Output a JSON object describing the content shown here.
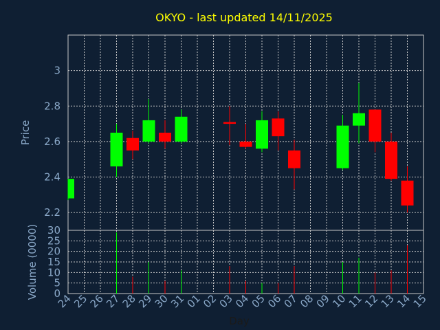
{
  "chart_data": {
    "type": "candlestick",
    "title": "OKYO - last updated 14/11/2025",
    "xlabel": "Day",
    "ylabel_price": "Price",
    "ylabel_volume": "Volume (0000)",
    "x_ticks": [
      "24",
      "25",
      "26",
      "27",
      "28",
      "29",
      "30",
      "31",
      "01",
      "02",
      "03",
      "04",
      "05",
      "06",
      "07",
      "08",
      "09",
      "10",
      "11",
      "12",
      "13",
      "14",
      "15"
    ],
    "price_ylim": [
      2.1,
      3.2
    ],
    "price_yticks": [
      2.2,
      2.4,
      2.6,
      2.8,
      3
    ],
    "volume_ylim": [
      0,
      30
    ],
    "volume_yticks": [
      0,
      5,
      10,
      15,
      20,
      25,
      30
    ],
    "grid": true,
    "colors": {
      "background": "#0f1f33",
      "title": "#ffff00",
      "axis_text": "#8aa8c8",
      "up": "#00ff00",
      "down": "#ff0000"
    },
    "candles": [
      {
        "day": "24",
        "open": 2.28,
        "high": 2.39,
        "low": 2.27,
        "close": 2.39,
        "volume": 0
      },
      {
        "day": "27",
        "open": 2.46,
        "high": 2.7,
        "low": 2.4,
        "close": 2.65,
        "volume": 29
      },
      {
        "day": "28",
        "open": 2.62,
        "high": 2.66,
        "low": 2.5,
        "close": 2.55,
        "volume": 8
      },
      {
        "day": "29",
        "open": 2.6,
        "high": 2.84,
        "low": 2.59,
        "close": 2.72,
        "volume": 15
      },
      {
        "day": "30",
        "open": 2.65,
        "high": 2.72,
        "low": 2.56,
        "close": 2.6,
        "volume": 6
      },
      {
        "day": "31",
        "open": 2.6,
        "high": 2.78,
        "low": 2.59,
        "close": 2.74,
        "volume": 11
      },
      {
        "day": "03",
        "open": 2.71,
        "high": 2.8,
        "low": 2.58,
        "close": 2.7,
        "volume": 13
      },
      {
        "day": "04",
        "open": 2.6,
        "high": 2.7,
        "low": 2.56,
        "close": 2.57,
        "volume": 6
      },
      {
        "day": "05",
        "open": 2.56,
        "high": 2.77,
        "low": 2.54,
        "close": 2.72,
        "volume": 5
      },
      {
        "day": "06",
        "open": 2.73,
        "high": 2.77,
        "low": 2.55,
        "close": 2.63,
        "volume": 5
      },
      {
        "day": "07",
        "open": 2.55,
        "high": 2.61,
        "low": 2.33,
        "close": 2.45,
        "volume": 13
      },
      {
        "day": "10",
        "open": 2.45,
        "high": 2.75,
        "low": 2.44,
        "close": 2.69,
        "volume": 15
      },
      {
        "day": "11",
        "open": 2.69,
        "high": 2.93,
        "low": 2.59,
        "close": 2.76,
        "volume": 17
      },
      {
        "day": "12",
        "open": 2.78,
        "high": 2.78,
        "low": 2.54,
        "close": 2.6,
        "volume": 10
      },
      {
        "day": "13",
        "open": 2.6,
        "high": 2.65,
        "low": 2.38,
        "close": 2.39,
        "volume": 11
      },
      {
        "day": "14",
        "open": 2.38,
        "high": 2.46,
        "low": 2.2,
        "close": 2.24,
        "volume": 23
      }
    ]
  }
}
